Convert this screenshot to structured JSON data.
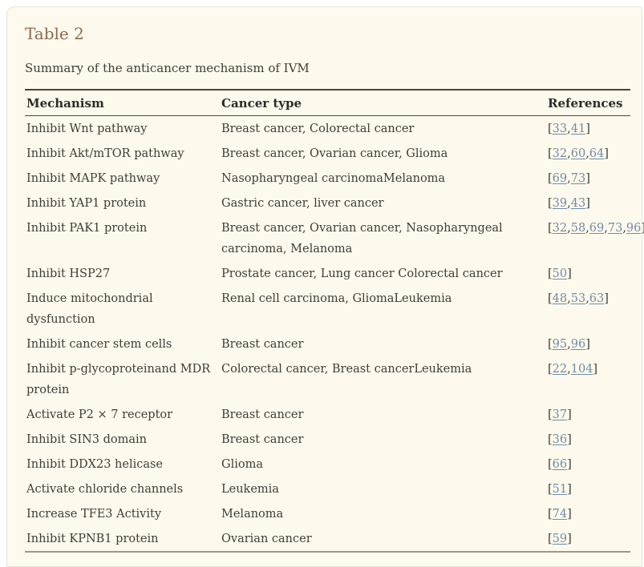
{
  "page": {
    "title": "Table 2",
    "subtitle": "Summary of the anticancer mechanism of IVM"
  },
  "colors": {
    "panel_bg": "#fdf9ec",
    "title_brown": "#8a6a4f",
    "body_text": "#3e3d38",
    "header_text": "#2c2b27",
    "link_blue": "#6f8ca8",
    "border_dark": "#47453f",
    "border_light": "#9a988c"
  },
  "table": {
    "columns": [
      "Mechanism",
      "Cancer type",
      "References"
    ],
    "rows": [
      {
        "mechanism": "Inhibit Wnt pathway",
        "cancer_type": "Breast cancer, Colorectal cancer",
        "refs": [
          "33",
          "41"
        ]
      },
      {
        "mechanism": "Inhibit Akt/mTOR pathway",
        "cancer_type": "Breast cancer, Ovarian cancer, Glioma",
        "refs": [
          "32",
          "60",
          "64"
        ]
      },
      {
        "mechanism": "Inhibit MAPK pathway",
        "cancer_type": "Nasopharyngeal carcinomaMelanoma",
        "refs": [
          "69",
          "73"
        ]
      },
      {
        "mechanism": "Inhibit YAP1 protein",
        "cancer_type": "Gastric cancer, liver cancer",
        "refs": [
          "39",
          "43"
        ]
      },
      {
        "mechanism": "Inhibit PAK1 protein",
        "cancer_type": "Breast cancer, Ovarian cancer, Nasopharyngeal carcinoma, Melanoma",
        "refs": [
          "32",
          "58",
          "69",
          "73",
          "96"
        ]
      },
      {
        "mechanism": "Inhibit HSP27",
        "cancer_type": "Prostate cancer, Lung cancer Colorectal cancer",
        "refs": [
          "50"
        ]
      },
      {
        "mechanism": "Induce mitochondrial dysfunction",
        "cancer_type": "Renal cell carcinoma, GliomaLeukemia",
        "refs": [
          "48",
          "53",
          "63"
        ]
      },
      {
        "mechanism": "Inhibit cancer stem cells",
        "cancer_type": "Breast cancer",
        "refs": [
          "95",
          "96"
        ]
      },
      {
        "mechanism": "Inhibit p-glycoproteinand MDR protein",
        "cancer_type": "Colorectal cancer, Breast cancerLeukemia",
        "refs": [
          "22",
          "104"
        ]
      },
      {
        "mechanism": "Activate P2 × 7 receptor",
        "cancer_type": "Breast cancer",
        "refs": [
          "37"
        ]
      },
      {
        "mechanism": "Inhibit SIN3 domain",
        "cancer_type": "Breast cancer",
        "refs": [
          "36"
        ]
      },
      {
        "mechanism": "Inhibit DDX23 helicase",
        "cancer_type": "Glioma",
        "refs": [
          "66"
        ]
      },
      {
        "mechanism": "Activate chloride channels",
        "cancer_type": "Leukemia",
        "refs": [
          "51"
        ]
      },
      {
        "mechanism": "Increase TFE3 Activity",
        "cancer_type": "Melanoma",
        "refs": [
          "74"
        ]
      },
      {
        "mechanism": "Inhibit KPNB1 protein",
        "cancer_type": "Ovarian cancer",
        "refs": [
          "59"
        ]
      }
    ]
  }
}
